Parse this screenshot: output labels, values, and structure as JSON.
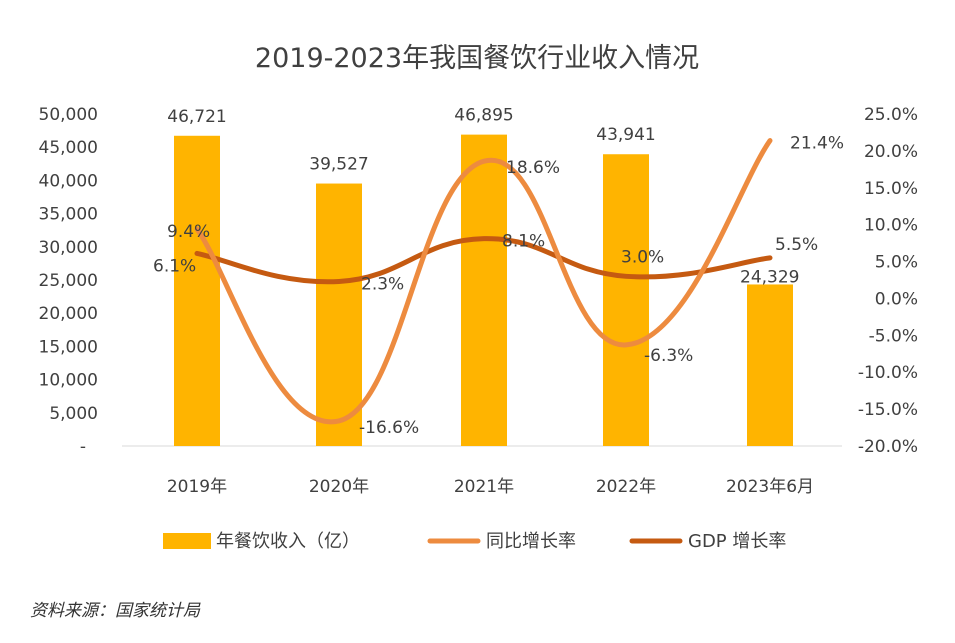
{
  "chart_data": {
    "type": "bar",
    "title": "2019-2023年我国餐饮行业收入情况",
    "categories": [
      "2019年",
      "2020年",
      "2021年",
      "2022年",
      "2023年6月"
    ],
    "series": [
      {
        "name": "年餐饮收入（亿）",
        "type": "bar",
        "axis": "left",
        "color": "#FFB400",
        "values": [
          46721,
          39527,
          46895,
          43941,
          24329
        ],
        "labels": [
          "46,721",
          "39,527",
          "46,895",
          "43,941",
          "24,329"
        ]
      },
      {
        "name": "同比增长率",
        "type": "line",
        "axis": "right",
        "color": "#ED8B3F",
        "values": [
          9.4,
          -16.6,
          18.6,
          -6.3,
          21.4
        ],
        "labels": [
          "9.4%",
          "-16.6%",
          "18.6%",
          "-6.3%",
          "21.4%"
        ]
      },
      {
        "name": "GDP 增长率",
        "type": "line",
        "axis": "right",
        "color": "#C55A11",
        "values": [
          6.1,
          2.3,
          8.1,
          3.0,
          5.5
        ],
        "labels": [
          "6.1%",
          "2.3%",
          "8.1%",
          "3.0%",
          "5.5%"
        ]
      }
    ],
    "y_left": {
      "range": [
        0,
        50000
      ],
      "ticks": [
        "-",
        "5,000",
        "10,000",
        "15,000",
        "20,000",
        "25,000",
        "30,000",
        "35,000",
        "40,000",
        "45,000",
        "50,000"
      ]
    },
    "y_right": {
      "range": [
        -20,
        25
      ],
      "ticks": [
        "-20.0%",
        "-15.0%",
        "-10.0%",
        "-5.0%",
        "0.0%",
        "5.0%",
        "10.0%",
        "15.0%",
        "20.0%",
        "25.0%"
      ]
    },
    "grid": false,
    "legend_position": "bottom"
  },
  "source": "资料来源：国家统计局"
}
